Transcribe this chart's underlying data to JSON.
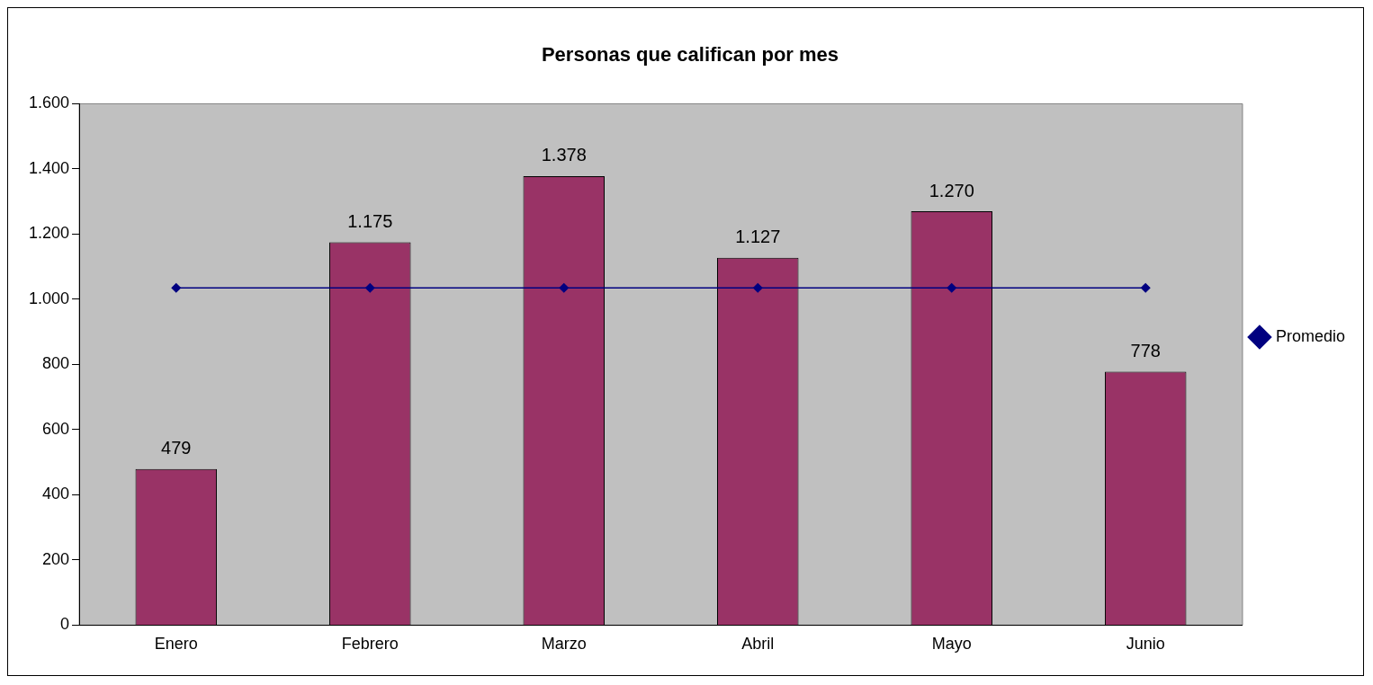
{
  "chart_data": {
    "type": "bar",
    "title": "Personas que califican por mes",
    "categories": [
      "Enero",
      "Febrero",
      "Marzo",
      "Abril",
      "Mayo",
      "Junio"
    ],
    "series": [
      {
        "color": "#993366",
        "values": [
          479,
          1175,
          1378,
          1127,
          1270,
          778
        ],
        "value_labels": [
          "479",
          "1.175",
          "1.378",
          "1.127",
          "1.270",
          "778"
        ]
      },
      {
        "type": "line",
        "name": "Promedio",
        "color": "#000080",
        "values": [
          1035,
          1035,
          1035,
          1035,
          1035,
          1035
        ]
      }
    ],
    "ylim": [
      0,
      1600
    ],
    "yticks": [
      0,
      200,
      400,
      600,
      800,
      {
        "value": 1000,
        "label": "1.000"
      },
      {
        "value": 1200,
        "label": "1.200"
      },
      {
        "value": 1400,
        "label": "1.400"
      },
      {
        "value": 1600,
        "label": "1.600"
      }
    ],
    "grid": false,
    "legend": "right",
    "marker": "diamond",
    "line_style": "solid"
  }
}
